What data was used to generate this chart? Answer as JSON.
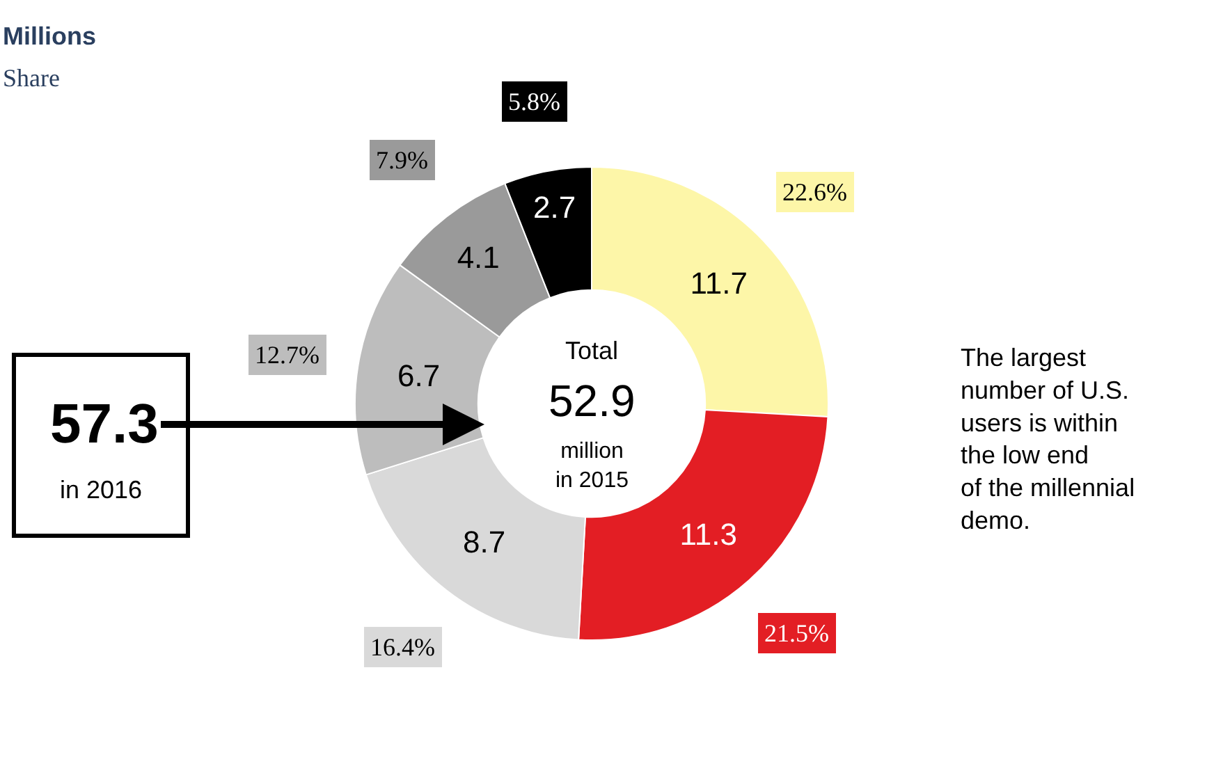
{
  "chart_data": {
    "type": "donut",
    "title": "Millions",
    "subtitle": "Share",
    "categories": [
      null,
      null,
      null,
      null,
      null,
      null
    ],
    "values": [
      11.7,
      11.3,
      8.7,
      6.7,
      4.1,
      2.7
    ],
    "colors": [
      "#fdf6a8",
      "#e31e24",
      "#d9d9d9",
      "#bdbdbd",
      "#9a9a9a",
      "#000000"
    ],
    "data_labels": true,
    "legend": false,
    "annotations": [
      "Total",
      "52.9",
      "million\nin 2015",
      "57.3",
      "in 2016",
      "The largest\nnumber of U.S.\nusers is within\nthe low end\nof the millennial\ndemo.",
      "22.6%",
      "21.5%",
      "16.4%",
      "12.7%",
      "7.9%",
      "5.8%"
    ]
  }
}
